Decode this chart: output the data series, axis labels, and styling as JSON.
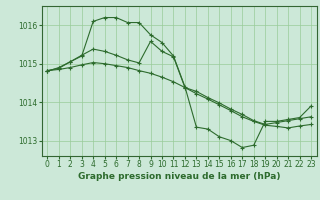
{
  "title": "Graphe pression niveau de la mer (hPa)",
  "background_color": "#cce8d8",
  "line_color": "#2d6b2d",
  "grid_color": "#99cc99",
  "spine_color": "#336633",
  "xlim": [
    -0.5,
    23.5
  ],
  "ylim": [
    1012.6,
    1016.5
  ],
  "yticks": [
    1013,
    1014,
    1015,
    1016
  ],
  "xticks": [
    0,
    1,
    2,
    3,
    4,
    5,
    6,
    7,
    8,
    9,
    10,
    11,
    12,
    13,
    14,
    15,
    16,
    17,
    18,
    19,
    20,
    21,
    22,
    23
  ],
  "line1_x": [
    0,
    1,
    2,
    3,
    4,
    5,
    6,
    7,
    8,
    9,
    10,
    11,
    12,
    13,
    14,
    15,
    16,
    17,
    18,
    19,
    20,
    21,
    22,
    23
  ],
  "line1_y": [
    1014.8,
    1014.9,
    1015.05,
    1015.2,
    1016.1,
    1016.2,
    1016.2,
    1016.07,
    1016.07,
    1015.75,
    1015.55,
    1015.2,
    1014.4,
    1013.35,
    1013.3,
    1013.1,
    1013.0,
    1012.82,
    1012.88,
    1013.5,
    1013.5,
    1013.55,
    1013.6,
    1013.9
  ],
  "line2_x": [
    0,
    1,
    2,
    3,
    4,
    5,
    6,
    7,
    8,
    9,
    10,
    11,
    12,
    13,
    14,
    15,
    16,
    17,
    18,
    19,
    20,
    21,
    22,
    23
  ],
  "line2_y": [
    1014.82,
    1014.85,
    1014.9,
    1014.97,
    1015.03,
    1015.0,
    1014.95,
    1014.9,
    1014.82,
    1014.75,
    1014.65,
    1014.53,
    1014.38,
    1014.22,
    1014.08,
    1013.93,
    1013.78,
    1013.62,
    1013.5,
    1013.4,
    1013.37,
    1013.33,
    1013.38,
    1013.42
  ],
  "line3_x": [
    0,
    1,
    2,
    3,
    4,
    5,
    6,
    7,
    8,
    9,
    10,
    11,
    12,
    13,
    14,
    15,
    16,
    17,
    18,
    19,
    20,
    21,
    22,
    23
  ],
  "line3_y": [
    1014.82,
    1014.88,
    1015.05,
    1015.22,
    1015.38,
    1015.32,
    1015.22,
    1015.1,
    1015.02,
    1015.58,
    1015.32,
    1015.18,
    1014.38,
    1014.28,
    1014.12,
    1013.98,
    1013.82,
    1013.68,
    1013.52,
    1013.42,
    1013.47,
    1013.52,
    1013.57,
    1013.62
  ],
  "tick_fontsize": 5.5,
  "label_fontsize": 6.5
}
